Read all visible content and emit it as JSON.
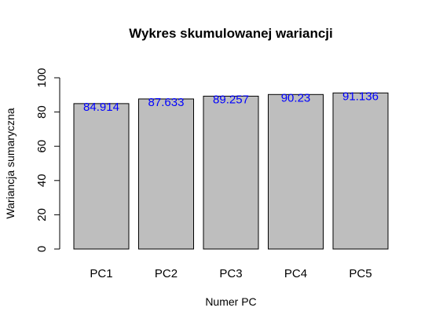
{
  "chart_data": {
    "type": "bar",
    "title": "Wykres skumulowanej wariancji",
    "xlabel": "Numer PC",
    "ylabel": "Wariancja sumaryczna",
    "categories": [
      "PC1",
      "PC2",
      "PC3",
      "PC4",
      "PC5"
    ],
    "values": [
      84.914,
      87.633,
      89.257,
      90.23,
      91.136
    ],
    "data_labels": [
      "84.914",
      "87.633",
      "89.257",
      "90.23",
      "91.136"
    ],
    "ylim": [
      0,
      100
    ],
    "yticks": [
      "0",
      "20",
      "40",
      "60",
      "80",
      "100"
    ],
    "grid": false,
    "legend": "none",
    "bar_color": "#bebebe",
    "bar_border_color": "#000000",
    "label_color": "#0000ff"
  }
}
